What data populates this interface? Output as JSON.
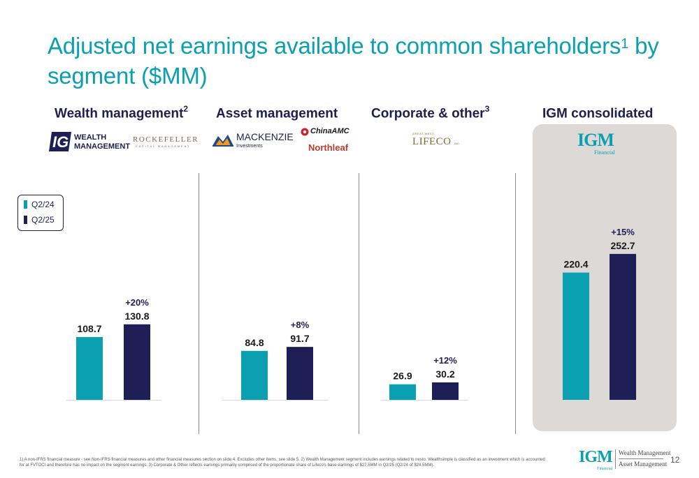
{
  "title": {
    "main": "Adjusted net earnings available to common shareholders",
    "sup": "1",
    "rest": " by segment ($MM)"
  },
  "segments": [
    {
      "name": "Wealth management",
      "sup": "2"
    },
    {
      "name": "Asset management",
      "sup": ""
    },
    {
      "name": "Corporate & other",
      "sup": "3"
    },
    {
      "name": "IGM consolidated",
      "sup": ""
    }
  ],
  "logos": {
    "ig_mark": "IG",
    "ig_line1": "WEALTH",
    "ig_line2": "MANAGEMENT",
    "rockefeller": "ROCKEFELLER",
    "rockefeller_sub": "CAPITAL MANAGEMENT",
    "mackenzie": "MACKENZIE",
    "mackenzie_sub": "Investments",
    "chinaamc": "ChinaAMC",
    "northleaf": "Northleaf",
    "lifeco_small": "GREAT-WEST",
    "lifeco": "LIFECO",
    "lifeco_inc": "INC.",
    "igm": "IGM",
    "igm_sub": "Financial",
    "foot_wealth": "Wealth Management",
    "foot_asset": "Asset Management"
  },
  "legend": [
    {
      "label": "Q2/24",
      "color": "#0aa0b2"
    },
    {
      "label": "Q2/25",
      "color": "#1f1f57"
    }
  ],
  "colors": {
    "q224": "#0aa0b2",
    "q225": "#1f1f57",
    "accent": "#0aa0b2",
    "text": "#1f1f4f"
  },
  "chart_data": {
    "type": "bar",
    "unit": "$MM",
    "series": [
      {
        "name": "Q2/24",
        "values": [
          108.7,
          84.8,
          26.9,
          220.4
        ]
      },
      {
        "name": "Q2/25",
        "values": [
          130.8,
          91.7,
          30.2,
          252.7
        ]
      }
    ],
    "categories": [
      "Wealth management",
      "Asset management",
      "Corporate & other",
      "IGM consolidated"
    ],
    "value_labels_q224": [
      "108.7",
      "84.8",
      "26.9",
      "220.4"
    ],
    "value_labels_q225": [
      "130.8",
      "91.7",
      "30.2",
      "252.7"
    ],
    "growth": [
      "+20%",
      "+8%",
      "+12%",
      "+15%"
    ],
    "legend_position": "left",
    "grid": false
  },
  "footnote": "1) A non-IFRS financial measure - see Non-IFRS financial measures and other financial measures section on slide 4. Excludes other items, see slide 5. 2) Wealth Management segment includes earnings related to nesto. Wealthsimple is classified as an investment which is accounted for at FVTOCI and therefore has no impact on the segment earnings. 3) Corporate & Other reflects earnings primarily comprised of the proportionate share of Lifeco's base earnings of $27.5MM in Q2/25 (Q2/24 of $24.5MM).",
  "page_number": "12"
}
